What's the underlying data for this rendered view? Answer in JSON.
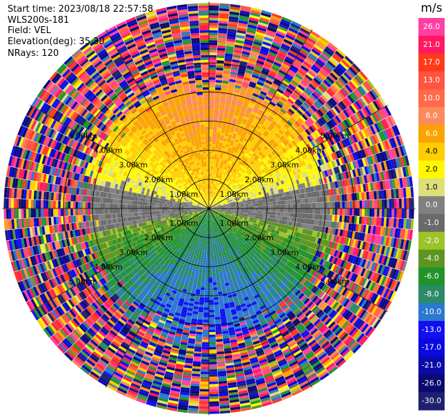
{
  "header": {
    "start_time": "Start time: 2023/08/18 22:57:58",
    "instrument": "WLS200s-181",
    "field": "Field: VEL",
    "elevation": "Elevation(deg): 35.30",
    "nrays": "NRays: 120"
  },
  "chart_data": {
    "type": "heatmap",
    "projection": "polar PPI",
    "field": "VEL",
    "units": "m/s",
    "range_rings_km": [
      1.0,
      2.0,
      3.0,
      4.0,
      5.0
    ],
    "range_ring_labels": [
      "1.00km",
      "2.00km",
      "3.00km",
      "4.00km",
      "5.00km"
    ],
    "azimuth_spokes_deg": [
      0,
      30,
      60,
      90,
      120,
      150,
      180,
      210,
      240,
      270,
      300,
      330
    ],
    "n_rays": 120,
    "max_range_km": 7.1,
    "pattern": {
      "north_sector_velocity_ms": 8,
      "south_sector_velocity_ms": -10,
      "noise_beyond_km": 4.6
    },
    "colorbar": {
      "ticks": [
        "26.0",
        "21.0",
        "17.0",
        "13.0",
        "10.0",
        "8.0",
        "6.0",
        "4.0",
        "2.0",
        "1.0",
        "0.0",
        "-1.0",
        "-2.0",
        "-4.0",
        "-6.0",
        "-8.0",
        "-10.0",
        "-13.0",
        "-17.0",
        "-21.0",
        "-26.0",
        "-30.0"
      ],
      "tick_values": [
        26,
        21,
        17,
        13,
        10,
        8,
        6,
        4,
        2,
        1,
        0,
        -1,
        -2,
        -4,
        -6,
        -8,
        -10,
        -13,
        -17,
        -21,
        -26,
        -30
      ],
      "colors": [
        "#ff3fa3",
        "#ff1a60",
        "#ff3a1a",
        "#ff5440",
        "#ff6a4a",
        "#fb8a5d",
        "#fba300",
        "#ffcd00",
        "#fff800",
        "#dde07a",
        "#808080",
        "#6a6a6a",
        "#9cc428",
        "#5c9620",
        "#20942a",
        "#2a8a6a",
        "#2a78d0",
        "#1010f0",
        "#0a0ae0",
        "#0a0aa8",
        "#0a0a70",
        "#202070"
      ]
    }
  }
}
